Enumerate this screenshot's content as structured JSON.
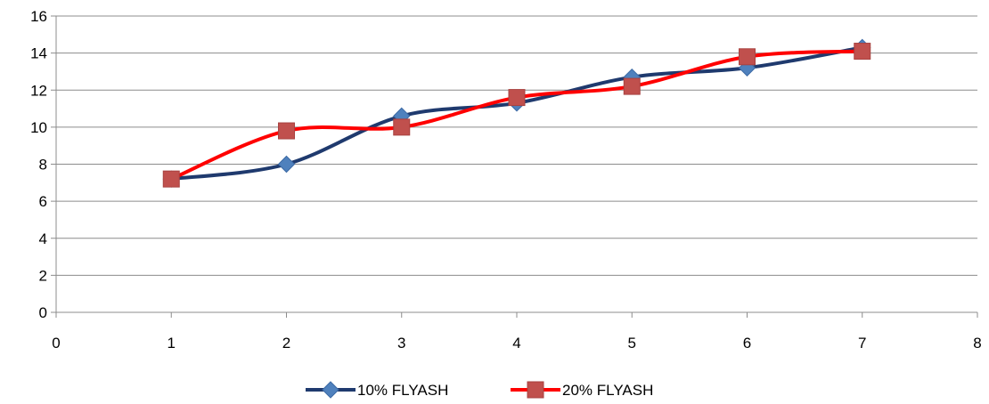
{
  "chart_data": {
    "type": "scatter",
    "title": "",
    "xlabel": "",
    "ylabel": "",
    "xlim": [
      0,
      8
    ],
    "ylim": [
      0,
      16
    ],
    "x_ticks": [
      0,
      1,
      2,
      3,
      4,
      5,
      6,
      7,
      8
    ],
    "y_ticks": [
      0,
      2,
      4,
      6,
      8,
      10,
      12,
      14,
      16
    ],
    "grid": "horizontal",
    "smoothed_lines": true,
    "legend_position": "bottom",
    "series": [
      {
        "name": "10% FLYASH",
        "color": "#1f3a6e",
        "marker": "diamond",
        "marker_color": "#4f81bd",
        "x": [
          1,
          2,
          3,
          4,
          5,
          6,
          7
        ],
        "y": [
          7.2,
          8.0,
          10.6,
          11.3,
          12.7,
          13.2,
          14.3
        ]
      },
      {
        "name": "20% FLYASH",
        "color": "#ff0000",
        "marker": "square",
        "marker_color": "#c0504d",
        "x": [
          1,
          2,
          3,
          4,
          5,
          6,
          7
        ],
        "y": [
          7.2,
          9.8,
          10.0,
          11.6,
          12.2,
          13.8,
          14.1
        ]
      }
    ]
  }
}
